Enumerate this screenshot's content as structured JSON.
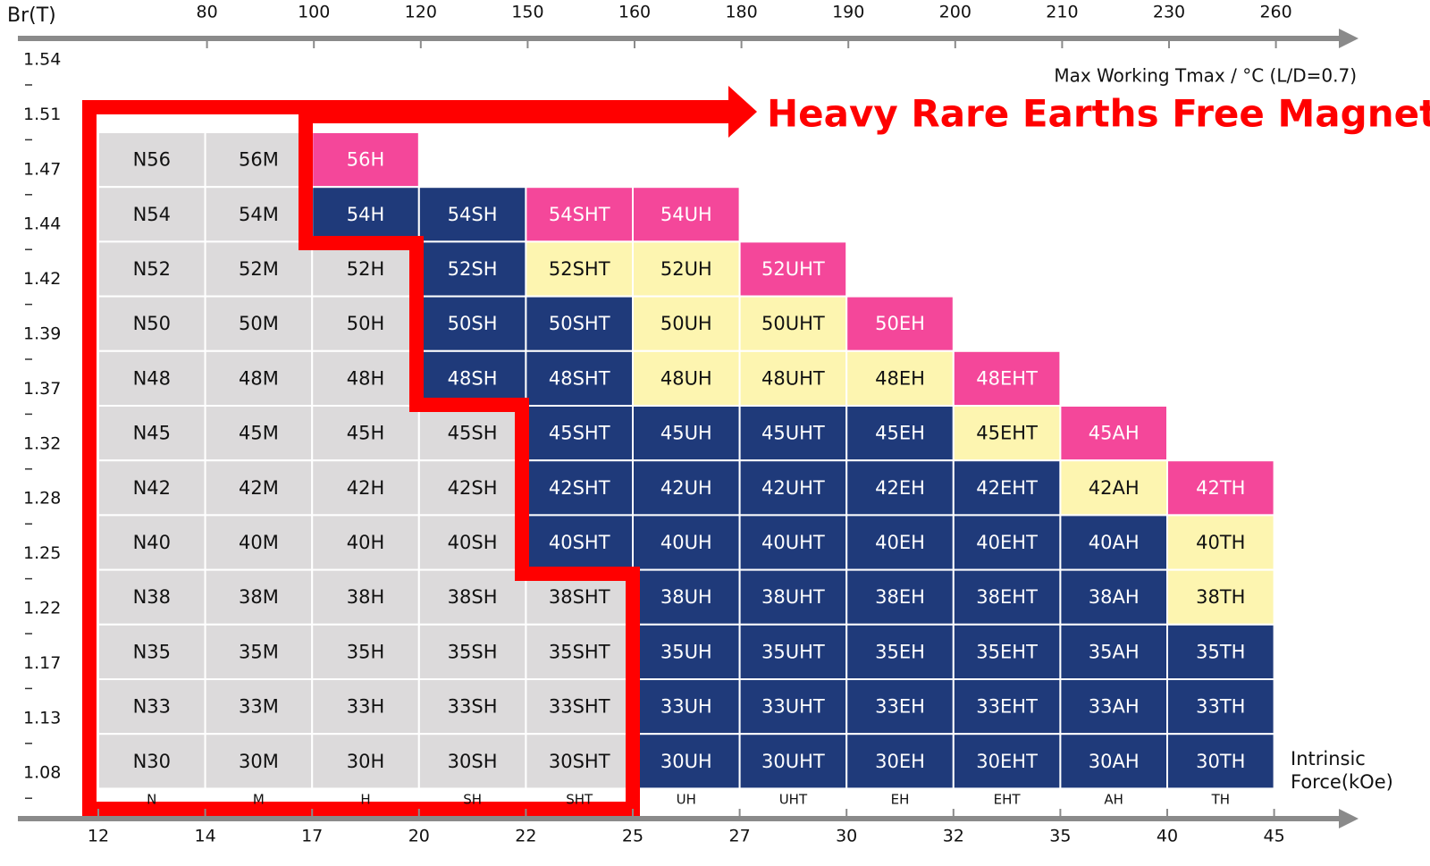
{
  "header": {
    "y_title": "Br(T)",
    "temperature_label": "Max Working Tmax / °C (L/D=0.7)",
    "banner": "Heavy Rare Earths Free Magnets"
  },
  "top_axis": {
    "labels": [
      "80",
      "100",
      "120",
      "150",
      "160",
      "180",
      "190",
      "200",
      "210",
      "230",
      "260"
    ]
  },
  "bottom_axis": {
    "labels": [
      "12",
      "14",
      "17",
      "20",
      "22",
      "25",
      "27",
      "30",
      "32",
      "35",
      "40",
      "45"
    ],
    "title": [
      "Intrinsic",
      "Force(kOe)"
    ]
  },
  "y_axis": {
    "labels": [
      "1.54",
      "1.51",
      "1.47",
      "1.44",
      "1.42",
      "1.39",
      "1.37",
      "1.32",
      "1.28",
      "1.25",
      "1.22",
      "1.17",
      "1.13",
      "1.08"
    ]
  },
  "series_labels": [
    "N",
    "M",
    "H",
    "SH",
    "SHT",
    "UH",
    "UHT",
    "EH",
    "EHT",
    "AH",
    "TH"
  ],
  "grid": {
    "rows": [
      [
        {
          "label": "N56",
          "color": "#dcdadb"
        },
        {
          "label": "56M",
          "color": "#dcdadb"
        },
        {
          "label": "56H",
          "color": "#f4479a"
        }
      ],
      [
        {
          "label": "N54",
          "color": "#dcdadb"
        },
        {
          "label": "54M",
          "color": "#dcdadb"
        },
        {
          "label": "54H",
          "color": "#1f3a7a"
        },
        {
          "label": "54SH",
          "color": "#1f3a7a"
        },
        {
          "label": "54SHT",
          "color": "#f4479a"
        },
        {
          "label": "54UH",
          "color": "#f4479a"
        }
      ],
      [
        {
          "label": "N52",
          "color": "#dcdadb"
        },
        {
          "label": "52M",
          "color": "#dcdadb"
        },
        {
          "label": "52H",
          "color": "#dcdadb"
        },
        {
          "label": "52SH",
          "color": "#1f3a7a"
        },
        {
          "label": "52SHT",
          "color": "#fdf5b0"
        },
        {
          "label": "52UH",
          "color": "#fdf5b0"
        },
        {
          "label": "52UHT",
          "color": "#f4479a"
        }
      ],
      [
        {
          "label": "N50",
          "color": "#dcdadb"
        },
        {
          "label": "50M",
          "color": "#dcdadb"
        },
        {
          "label": "50H",
          "color": "#dcdadb"
        },
        {
          "label": "50SH",
          "color": "#1f3a7a"
        },
        {
          "label": "50SHT",
          "color": "#1f3a7a"
        },
        {
          "label": "50UH",
          "color": "#fdf5b0"
        },
        {
          "label": "50UHT",
          "color": "#fdf5b0"
        },
        {
          "label": "50EH",
          "color": "#f4479a"
        }
      ],
      [
        {
          "label": "N48",
          "color": "#dcdadb"
        },
        {
          "label": "48M",
          "color": "#dcdadb"
        },
        {
          "label": "48H",
          "color": "#dcdadb"
        },
        {
          "label": "48SH",
          "color": "#1f3a7a"
        },
        {
          "label": "48SHT",
          "color": "#1f3a7a"
        },
        {
          "label": "48UH",
          "color": "#fdf5b0"
        },
        {
          "label": "48UHT",
          "color": "#fdf5b0"
        },
        {
          "label": "48EH",
          "color": "#fdf5b0"
        },
        {
          "label": "48EHT",
          "color": "#f4479a"
        }
      ],
      [
        {
          "label": "N45",
          "color": "#dcdadb"
        },
        {
          "label": "45M",
          "color": "#dcdadb"
        },
        {
          "label": "45H",
          "color": "#dcdadb"
        },
        {
          "label": "45SH",
          "color": "#dcdadb"
        },
        {
          "label": "45SHT",
          "color": "#1f3a7a"
        },
        {
          "label": "45UH",
          "color": "#1f3a7a"
        },
        {
          "label": "45UHT",
          "color": "#1f3a7a"
        },
        {
          "label": "45EH",
          "color": "#1f3a7a"
        },
        {
          "label": "45EHT",
          "color": "#fdf5b0"
        },
        {
          "label": "45AH",
          "color": "#f4479a"
        }
      ],
      [
        {
          "label": "N42",
          "color": "#dcdadb"
        },
        {
          "label": "42M",
          "color": "#dcdadb"
        },
        {
          "label": "42H",
          "color": "#dcdadb"
        },
        {
          "label": "42SH",
          "color": "#dcdadb"
        },
        {
          "label": "42SHT",
          "color": "#1f3a7a"
        },
        {
          "label": "42UH",
          "color": "#1f3a7a"
        },
        {
          "label": "42UHT",
          "color": "#1f3a7a"
        },
        {
          "label": "42EH",
          "color": "#1f3a7a"
        },
        {
          "label": "42EHT",
          "color": "#1f3a7a"
        },
        {
          "label": "42AH",
          "color": "#fdf5b0"
        },
        {
          "label": "42TH",
          "color": "#f4479a"
        }
      ],
      [
        {
          "label": "N40",
          "color": "#dcdadb"
        },
        {
          "label": "40M",
          "color": "#dcdadb"
        },
        {
          "label": "40H",
          "color": "#dcdadb"
        },
        {
          "label": "40SH",
          "color": "#dcdadb"
        },
        {
          "label": "40SHT",
          "color": "#1f3a7a"
        },
        {
          "label": "40UH",
          "color": "#1f3a7a"
        },
        {
          "label": "40UHT",
          "color": "#1f3a7a"
        },
        {
          "label": "40EH",
          "color": "#1f3a7a"
        },
        {
          "label": "40EHT",
          "color": "#1f3a7a"
        },
        {
          "label": "40AH",
          "color": "#1f3a7a"
        },
        {
          "label": "40TH",
          "color": "#fdf5b0"
        }
      ],
      [
        {
          "label": "N38",
          "color": "#dcdadb"
        },
        {
          "label": "38M",
          "color": "#dcdadb"
        },
        {
          "label": "38H",
          "color": "#dcdadb"
        },
        {
          "label": "38SH",
          "color": "#dcdadb"
        },
        {
          "label": "38SHT",
          "color": "#dcdadb"
        },
        {
          "label": "38UH",
          "color": "#1f3a7a"
        },
        {
          "label": "38UHT",
          "color": "#1f3a7a"
        },
        {
          "label": "38EH",
          "color": "#1f3a7a"
        },
        {
          "label": "38EHT",
          "color": "#1f3a7a"
        },
        {
          "label": "38AH",
          "color": "#1f3a7a"
        },
        {
          "label": "38TH",
          "color": "#fdf5b0"
        }
      ],
      [
        {
          "label": "N35",
          "color": "#dcdadb"
        },
        {
          "label": "35M",
          "color": "#dcdadb"
        },
        {
          "label": "35H",
          "color": "#dcdadb"
        },
        {
          "label": "35SH",
          "color": "#dcdadb"
        },
        {
          "label": "35SHT",
          "color": "#dcdadb"
        },
        {
          "label": "35UH",
          "color": "#1f3a7a"
        },
        {
          "label": "35UHT",
          "color": "#1f3a7a"
        },
        {
          "label": "35EH",
          "color": "#1f3a7a"
        },
        {
          "label": "35EHT",
          "color": "#1f3a7a"
        },
        {
          "label": "35AH",
          "color": "#1f3a7a"
        },
        {
          "label": "35TH",
          "color": "#1f3a7a"
        }
      ],
      [
        {
          "label": "N33",
          "color": "#dcdadb"
        },
        {
          "label": "33M",
          "color": "#dcdadb"
        },
        {
          "label": "33H",
          "color": "#dcdadb"
        },
        {
          "label": "33SH",
          "color": "#dcdadb"
        },
        {
          "label": "33SHT",
          "color": "#dcdadb"
        },
        {
          "label": "33UH",
          "color": "#1f3a7a"
        },
        {
          "label": "33UHT",
          "color": "#1f3a7a"
        },
        {
          "label": "33EH",
          "color": "#1f3a7a"
        },
        {
          "label": "33EHT",
          "color": "#1f3a7a"
        },
        {
          "label": "33AH",
          "color": "#1f3a7a"
        },
        {
          "label": "33TH",
          "color": "#1f3a7a"
        }
      ],
      [
        {
          "label": "N30",
          "color": "#dcdadb"
        },
        {
          "label": "30M",
          "color": "#dcdadb"
        },
        {
          "label": "30H",
          "color": "#dcdadb"
        },
        {
          "label": "30SH",
          "color": "#dcdadb"
        },
        {
          "label": "30SHT",
          "color": "#dcdadb"
        },
        {
          "label": "30UH",
          "color": "#1f3a7a"
        },
        {
          "label": "30UHT",
          "color": "#1f3a7a"
        },
        {
          "label": "30EH",
          "color": "#1f3a7a"
        },
        {
          "label": "30EHT",
          "color": "#1f3a7a"
        },
        {
          "label": "30AH",
          "color": "#1f3a7a"
        },
        {
          "label": "30TH",
          "color": "#1f3a7a"
        }
      ]
    ]
  }
}
